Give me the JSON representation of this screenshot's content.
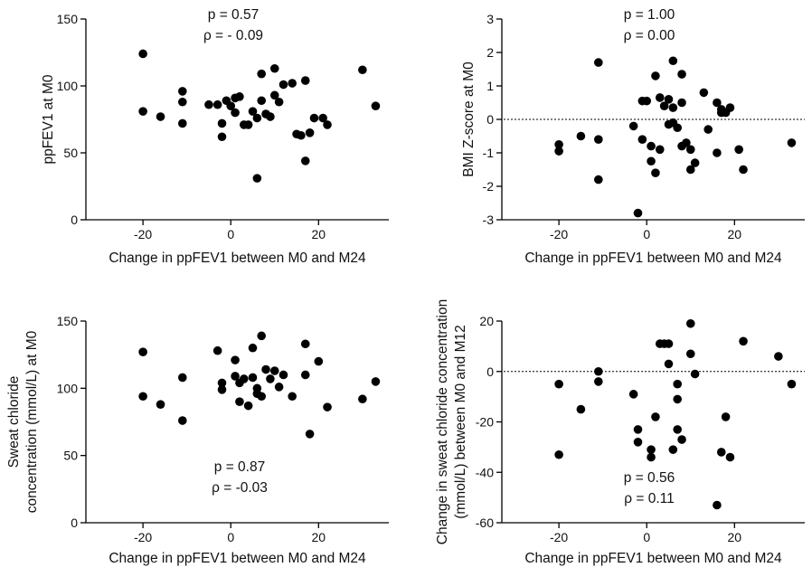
{
  "figure": {
    "panels": [
      {
        "id": "A",
        "annotation_lines": [
          "p = 0.57",
          "ρ = - 0.09"
        ]
      },
      {
        "id": "B",
        "annotation_lines": [
          "p = 1.00",
          "ρ = 0.00"
        ]
      },
      {
        "id": "C",
        "annotation_lines": [
          "p = 0.87",
          "ρ = -0.03"
        ]
      },
      {
        "id": "D",
        "annotation_lines": [
          "p = 0.56",
          "ρ = 0.11"
        ]
      }
    ]
  },
  "chart_data": [
    {
      "type": "scatter",
      "xlabel": "Change in ppFEV1 between M0 and M24",
      "ylabel": [
        "ppFEV1 at M0"
      ],
      "xlim": [
        -33,
        36
      ],
      "ylim": [
        0,
        150
      ],
      "xticks": [
        -20,
        0,
        20
      ],
      "yticks": [
        0,
        50,
        100,
        150
      ],
      "xtick_labels": [
        "-20",
        "0",
        "20"
      ],
      "ytick_labels": [
        "0",
        "50",
        "100",
        "150"
      ],
      "reference_line": null,
      "annotation": [
        "p = 0.57",
        "ρ = - 0.09"
      ],
      "points": [
        [
          -20,
          124
        ],
        [
          -20,
          81
        ],
        [
          -16,
          77
        ],
        [
          -11,
          96
        ],
        [
          -11,
          88
        ],
        [
          -11,
          72
        ],
        [
          -5,
          86
        ],
        [
          -3,
          86
        ],
        [
          -2,
          72
        ],
        [
          -2,
          62
        ],
        [
          -1,
          89
        ],
        [
          0,
          85
        ],
        [
          1,
          91
        ],
        [
          1,
          80
        ],
        [
          2,
          92
        ],
        [
          3,
          71
        ],
        [
          4,
          71
        ],
        [
          5,
          81
        ],
        [
          6,
          76
        ],
        [
          6,
          31
        ],
        [
          7,
          109
        ],
        [
          7,
          89
        ],
        [
          8,
          79
        ],
        [
          9,
          77
        ],
        [
          10,
          113
        ],
        [
          10,
          93
        ],
        [
          11,
          88
        ],
        [
          12,
          101
        ],
        [
          14,
          102
        ],
        [
          15,
          64
        ],
        [
          16,
          63
        ],
        [
          17,
          104
        ],
        [
          17,
          44
        ],
        [
          18,
          65
        ],
        [
          19,
          76
        ],
        [
          21,
          76
        ],
        [
          22,
          71
        ],
        [
          30,
          112
        ],
        [
          33,
          85
        ]
      ]
    },
    {
      "type": "scatter",
      "xlabel": "Change in ppFEV1 between M0 and M24",
      "ylabel": [
        "BMI  Z-score at M0"
      ],
      "xlim": [
        -33,
        36
      ],
      "ylim": [
        -3,
        3
      ],
      "xticks": [
        -20,
        0,
        20
      ],
      "yticks": [
        -3,
        -2,
        -1,
        0,
        1,
        2,
        3
      ],
      "xtick_labels": [
        "-20",
        "0",
        "20"
      ],
      "ytick_labels": [
        "-3",
        "-2",
        "-1",
        "0",
        "1",
        "2",
        "3"
      ],
      "reference_line": 0,
      "annotation": [
        "p = 1.00",
        "ρ = 0.00"
      ],
      "points": [
        [
          -20,
          -0.75
        ],
        [
          -20,
          -0.95
        ],
        [
          -15,
          -0.5
        ],
        [
          -11,
          1.7
        ],
        [
          -11,
          -0.6
        ],
        [
          -11,
          -1.8
        ],
        [
          -3,
          -0.2
        ],
        [
          -2,
          -2.8
        ],
        [
          -1,
          0.55
        ],
        [
          -1,
          -0.6
        ],
        [
          0,
          0.55
        ],
        [
          1,
          -0.8
        ],
        [
          1,
          -1.25
        ],
        [
          2,
          1.3
        ],
        [
          2,
          -1.6
        ],
        [
          3,
          0.65
        ],
        [
          3,
          -0.9
        ],
        [
          4,
          0.4
        ],
        [
          5,
          0.6
        ],
        [
          5,
          -0.15
        ],
        [
          6,
          1.75
        ],
        [
          6,
          0.35
        ],
        [
          6,
          -0.1
        ],
        [
          7,
          -0.25
        ],
        [
          8,
          1.35
        ],
        [
          8,
          0.5
        ],
        [
          8,
          -0.8
        ],
        [
          9,
          -0.7
        ],
        [
          10,
          -0.9
        ],
        [
          10,
          -1.5
        ],
        [
          11,
          -1.3
        ],
        [
          13,
          0.8
        ],
        [
          14,
          -0.3
        ],
        [
          16,
          0.5
        ],
        [
          16,
          -1.0
        ],
        [
          17,
          0.2
        ],
        [
          17,
          0.3
        ],
        [
          18,
          0.2
        ],
        [
          19,
          0.35
        ],
        [
          21,
          -0.9
        ],
        [
          22,
          -1.5
        ],
        [
          33,
          -0.7
        ]
      ]
    },
    {
      "type": "scatter",
      "xlabel": "Change in ppFEV1 between M0 and M24",
      "ylabel": [
        "Sweat chloride",
        "concentration (mmol/L) at M0"
      ],
      "xlim": [
        -33,
        36
      ],
      "ylim": [
        0,
        150
      ],
      "xticks": [
        -20,
        0,
        20
      ],
      "yticks": [
        0,
        50,
        100,
        150
      ],
      "xtick_labels": [
        "-20",
        "0",
        "20"
      ],
      "ytick_labels": [
        "0",
        "50",
        "100",
        "150"
      ],
      "reference_line": null,
      "annotation": [
        "p = 0.87",
        "ρ = -0.03"
      ],
      "points": [
        [
          -20,
          127
        ],
        [
          -20,
          94
        ],
        [
          -16,
          88
        ],
        [
          -11,
          108
        ],
        [
          -11,
          76
        ],
        [
          -3,
          128
        ],
        [
          -2,
          104
        ],
        [
          -2,
          99
        ],
        [
          1,
          121
        ],
        [
          1,
          109
        ],
        [
          2,
          104
        ],
        [
          2,
          90
        ],
        [
          3,
          107
        ],
        [
          4,
          87
        ],
        [
          5,
          130
        ],
        [
          5,
          108
        ],
        [
          6,
          100
        ],
        [
          6,
          96
        ],
        [
          7,
          139
        ],
        [
          7,
          94
        ],
        [
          8,
          114
        ],
        [
          9,
          107
        ],
        [
          10,
          113
        ],
        [
          11,
          101
        ],
        [
          12,
          110
        ],
        [
          14,
          94
        ],
        [
          17,
          133
        ],
        [
          17,
          110
        ],
        [
          18,
          66
        ],
        [
          20,
          120
        ],
        [
          22,
          86
        ],
        [
          30,
          92
        ],
        [
          33,
          105
        ]
      ]
    },
    {
      "type": "scatter",
      "xlabel": "Change in ppFEV1 between M0 and M24",
      "ylabel": [
        "Change in sweat chloride concentration",
        "(mmol/L) between M0 and M12"
      ],
      "xlim": [
        -33,
        36
      ],
      "ylim": [
        -60,
        20
      ],
      "xticks": [
        -20,
        0,
        20
      ],
      "yticks": [
        -60,
        -40,
        -20,
        0,
        20
      ],
      "xtick_labels": [
        "-20",
        "0",
        "20"
      ],
      "ytick_labels": [
        "-60",
        "-40",
        "-20",
        "0",
        "20"
      ],
      "reference_line": 0,
      "annotation": [
        "p = 0.56",
        "ρ = 0.11"
      ],
      "points": [
        [
          -20,
          -5
        ],
        [
          -20,
          -33
        ],
        [
          -15,
          -15
        ],
        [
          -11,
          0
        ],
        [
          -11,
          -4
        ],
        [
          -3,
          -9
        ],
        [
          -2,
          -23
        ],
        [
          -2,
          -28
        ],
        [
          1,
          -31
        ],
        [
          1,
          -34
        ],
        [
          2,
          -18
        ],
        [
          3,
          11
        ],
        [
          4,
          11
        ],
        [
          5,
          11
        ],
        [
          5,
          3
        ],
        [
          6,
          -31
        ],
        [
          7,
          -5
        ],
        [
          7,
          -11
        ],
        [
          7,
          -23
        ],
        [
          8,
          -27
        ],
        [
          10,
          19
        ],
        [
          10,
          7
        ],
        [
          11,
          -1
        ],
        [
          17,
          -32
        ],
        [
          18,
          -18
        ],
        [
          19,
          -34
        ],
        [
          22,
          12
        ],
        [
          30,
          6
        ],
        [
          33,
          -5
        ],
        [
          16,
          -53
        ]
      ]
    }
  ]
}
